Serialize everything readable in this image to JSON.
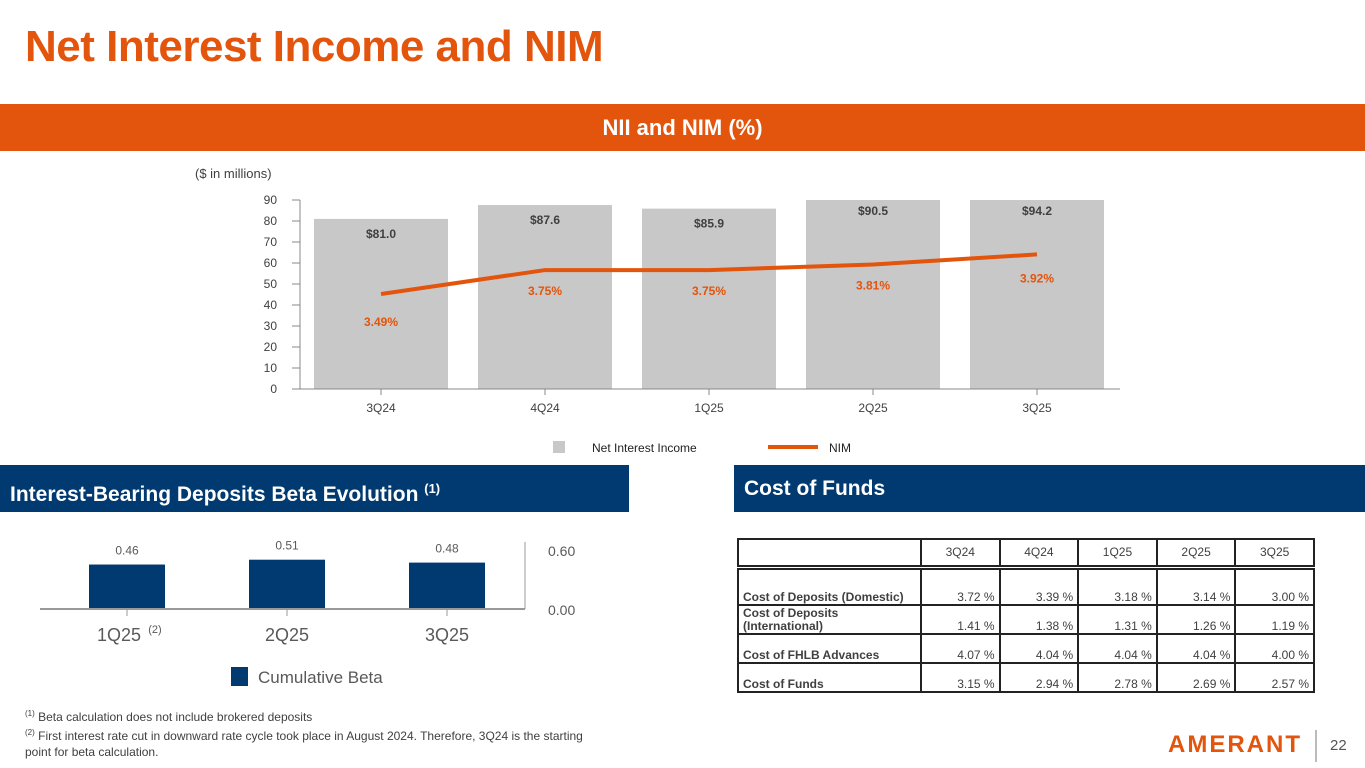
{
  "title": "Net Interest Income and NIM",
  "band_title": "NII and NIM (%)",
  "section_beta": "Interest-Bearing Deposits Beta Evolution",
  "section_beta_sup": "(1)",
  "section_cof": "Cost of Funds",
  "chart_data": [
    {
      "type": "bar+line",
      "title": "NII and NIM (%)",
      "ylabel": "($ in millions)",
      "categories": [
        "3Q24",
        "4Q24",
        "1Q25",
        "2Q25",
        "3Q25"
      ],
      "ylim": [
        0,
        90
      ],
      "yticks": [
        "0",
        "10",
        "20",
        "30",
        "40",
        "50",
        "60",
        "70",
        "80",
        "90"
      ],
      "series": [
        {
          "name": "Net Interest Income",
          "type": "bar",
          "values": [
            81.0,
            87.6,
            85.9,
            90.5,
            94.2
          ],
          "labels": [
            "$81.0",
            "$87.6",
            "$85.9",
            "$90.5",
            "$94.2"
          ],
          "color": "#c8c8c8"
        },
        {
          "name": "NIM",
          "type": "line",
          "values": [
            3.49,
            3.75,
            3.75,
            3.81,
            3.92
          ],
          "labels": [
            "3.49%",
            "3.75%",
            "3.75%",
            "3.81%",
            "3.92%"
          ],
          "color": "#e3540d",
          "y2lim": [
            2.46,
            4.51
          ]
        }
      ],
      "legend": "bottom"
    },
    {
      "type": "bar",
      "categories": [
        "1Q25",
        "2Q25",
        "3Q25"
      ],
      "category_sup": [
        "(2)",
        "",
        ""
      ],
      "series": [
        {
          "name": "Cumulative Beta",
          "values": [
            0.46,
            0.51,
            0.48
          ],
          "labels": [
            "0.46",
            "0.51",
            "0.48"
          ],
          "color": "#003a70"
        }
      ],
      "ylim": [
        0,
        0.6
      ],
      "yticks": [
        "0.00",
        "0.60"
      ],
      "legend": "bottom"
    }
  ],
  "cost_table": {
    "headers": [
      "3Q24",
      "4Q24",
      "1Q25",
      "2Q25",
      "3Q25"
    ],
    "rows": [
      {
        "label": "Cost of Deposits (Domestic)",
        "values": [
          "3.72 %",
          "3.39 %",
          "3.18 %",
          "3.14 %",
          "3.00 %"
        ]
      },
      {
        "label": "Cost of Deposits (International)",
        "values": [
          "1.41 %",
          "1.38 %",
          "1.31 %",
          "1.26 %",
          "1.19 %"
        ]
      },
      {
        "label": "Cost of FHLB Advances",
        "values": [
          "4.07 %",
          "4.04 %",
          "4.04 %",
          "4.04 %",
          "4.00 %"
        ]
      },
      {
        "label": "Cost of Funds",
        "values": [
          "3.15 %",
          "2.94 %",
          "2.78 %",
          "2.69 %",
          "2.57 %"
        ]
      }
    ]
  },
  "notes": [
    {
      "sup": "(1)",
      "text": " Beta calculation does not include brokered deposits"
    },
    {
      "sup": "(2)",
      "text": " First interest rate cut in downward rate cycle took place in August 2024. Therefore, 3Q24 is the starting point for beta calculation."
    }
  ],
  "logo": "AMERANT",
  "page_number": "22"
}
